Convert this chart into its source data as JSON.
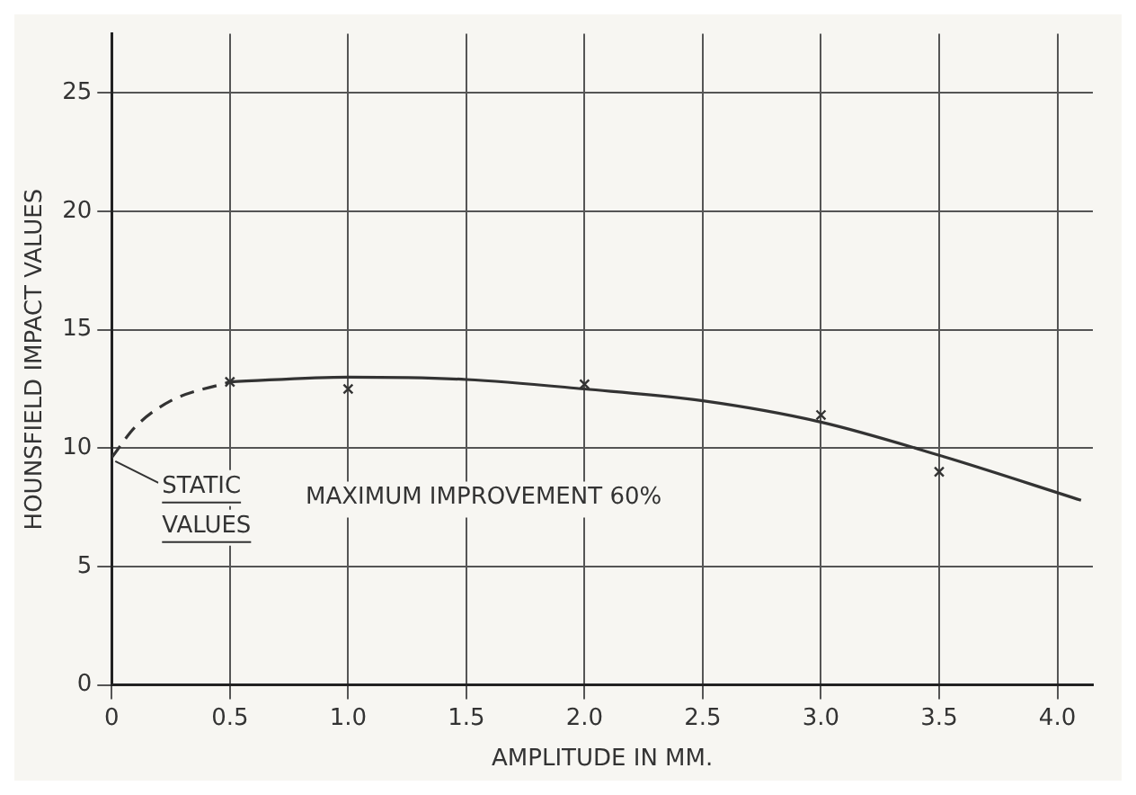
{
  "chart_data": {
    "type": "line",
    "xlabel": "AMPLITUDE IN MM.",
    "ylabel": "HOUNSFIELD IMPACT VALUES",
    "xlim": [
      0,
      4.15
    ],
    "ylim": [
      0,
      27.5
    ],
    "xticks": [
      0,
      0.5,
      {
        "value": 1,
        "label": "1.0"
      },
      1.5,
      {
        "value": 2,
        "label": "2.0"
      },
      2.5,
      {
        "value": 3,
        "label": "3.0"
      },
      3.5,
      {
        "value": 4,
        "label": "4.0"
      }
    ],
    "yticks": [
      0,
      5,
      10,
      15,
      20,
      25
    ],
    "grid": true,
    "series": [
      {
        "line_style": "dashed",
        "color": "#333333",
        "x": [
          0,
          0.1,
          0.25,
          0.5
        ],
        "values": [
          9.6,
          10.9,
          12.0,
          12.8
        ]
      },
      {
        "line_style": "solid",
        "color": "#333333",
        "x": [
          0.5,
          1,
          1.5,
          2,
          2.5,
          3,
          3.5,
          4.1
        ],
        "values": [
          12.8,
          13.0,
          12.9,
          12.5,
          12.0,
          11.1,
          9.7,
          7.8
        ]
      },
      {
        "type": "scatter",
        "marker": "cross",
        "color": "#333333",
        "x": [
          0.5,
          1,
          2,
          3,
          3.5
        ],
        "values": [
          12.8,
          12.5,
          12.7,
          11.4,
          9.0
        ]
      }
    ],
    "annotations": [
      {
        "text": "STATIC VALUES",
        "x": 0,
        "y": 9.6
      },
      "MAXIMUM IMPROVEMENT 60%"
    ]
  }
}
